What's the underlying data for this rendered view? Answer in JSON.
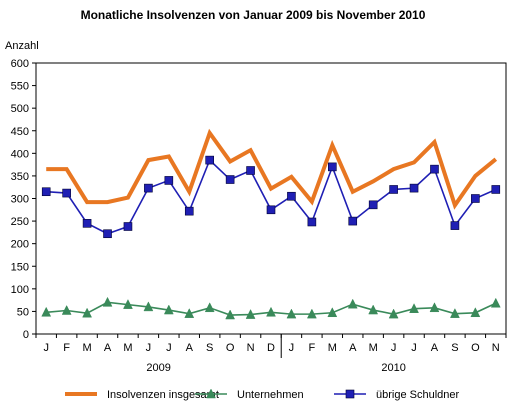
{
  "chart_data": {
    "type": "line",
    "title": "Monatliche Insolvenzen von Januar 2009 bis November 2010",
    "ylabel": "Anzahl",
    "xlabel": "",
    "ylim": [
      0,
      600
    ],
    "yticks": [
      0,
      50,
      100,
      150,
      200,
      250,
      300,
      350,
      400,
      450,
      500,
      550,
      600
    ],
    "grid": false,
    "legend_position": "bottom",
    "categories": [
      "J",
      "F",
      "M",
      "A",
      "M",
      "J",
      "J",
      "A",
      "S",
      "O",
      "N",
      "D",
      "J",
      "F",
      "M",
      "A",
      "M",
      "J",
      "J",
      "A",
      "S",
      "O",
      "N"
    ],
    "years": [
      {
        "label": "2009",
        "start": 0,
        "end": 11
      },
      {
        "label": "2010",
        "start": 12,
        "end": 22
      }
    ],
    "series": [
      {
        "name": "Insolvenzen insgesamt",
        "color": "#e87722",
        "marker": "none",
        "values": [
          365,
          365,
          292,
          292,
          302,
          385,
          393,
          315,
          445,
          382,
          407,
          322,
          348,
          293,
          418,
          315,
          338,
          365,
          380,
          425,
          285,
          350,
          387
        ]
      },
      {
        "name": "Unternehmen",
        "color": "#3a8a5a",
        "marker": "triangle",
        "values": [
          48,
          52,
          46,
          70,
          65,
          60,
          53,
          45,
          58,
          42,
          43,
          48,
          44,
          44,
          47,
          66,
          53,
          44,
          56,
          58,
          45,
          47,
          68
        ]
      },
      {
        "name": "übrige Schuldner",
        "color": "#1f1fb4",
        "marker": "square",
        "values": [
          315,
          312,
          245,
          222,
          238,
          323,
          340,
          272,
          385,
          342,
          362,
          275,
          305,
          248,
          370,
          250,
          286,
          320,
          323,
          365,
          240,
          300,
          320
        ]
      }
    ]
  }
}
